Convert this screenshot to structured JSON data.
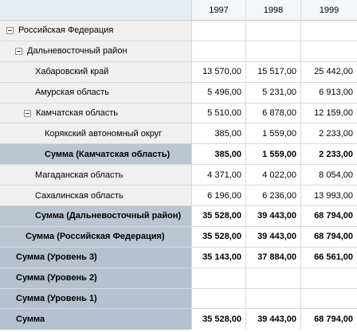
{
  "columns": [
    "1997",
    "1998",
    "1999"
  ],
  "rows": [
    {
      "label": "Российская Федерация",
      "v": [
        "",
        "",
        ""
      ]
    },
    {
      "label": "Дальневосточный район",
      "v": [
        "",
        "",
        ""
      ]
    },
    {
      "label": "Хабаровский край",
      "v": [
        "13 570,00",
        "15 517,00",
        "25 442,00"
      ]
    },
    {
      "label": "Амурская область",
      "v": [
        "5 496,00",
        "5 231,00",
        "6 913,00"
      ]
    },
    {
      "label": "Камчатская область",
      "v": [
        "5 510,00",
        "6 878,00",
        "12 159,00"
      ]
    },
    {
      "label": "Корякский автономный округ",
      "v": [
        "385,00",
        "1 559,00",
        "2 233,00"
      ]
    },
    {
      "label": "Сумма (Камчатская область)",
      "v": [
        "385,00",
        "1 559,00",
        "2 233,00"
      ]
    },
    {
      "label": "Магаданская область",
      "v": [
        "4 371,00",
        "4 022,00",
        "8 054,00"
      ]
    },
    {
      "label": "Сахалинская область",
      "v": [
        "6 196,00",
        "6 236,00",
        "13 993,00"
      ]
    },
    {
      "label": "Сумма (Дальневосточный район)",
      "v": [
        "35 528,00",
        "39 443,00",
        "68 794,00"
      ]
    },
    {
      "label": "Сумма (Российская Федерация)",
      "v": [
        "35 528,00",
        "39 443,00",
        "68 794,00"
      ]
    },
    {
      "label": "Сумма (Уровень 3)",
      "v": [
        "35 143,00",
        "37 884,00",
        "66 561,00"
      ]
    },
    {
      "label": "Сумма (Уровень 2)",
      "v": [
        "",
        "",
        ""
      ]
    },
    {
      "label": "Сумма (Уровень 1)",
      "v": [
        "",
        "",
        ""
      ]
    },
    {
      "label": "Сумма",
      "v": [
        "35 528,00",
        "39 443,00",
        "68 794,00"
      ]
    }
  ]
}
